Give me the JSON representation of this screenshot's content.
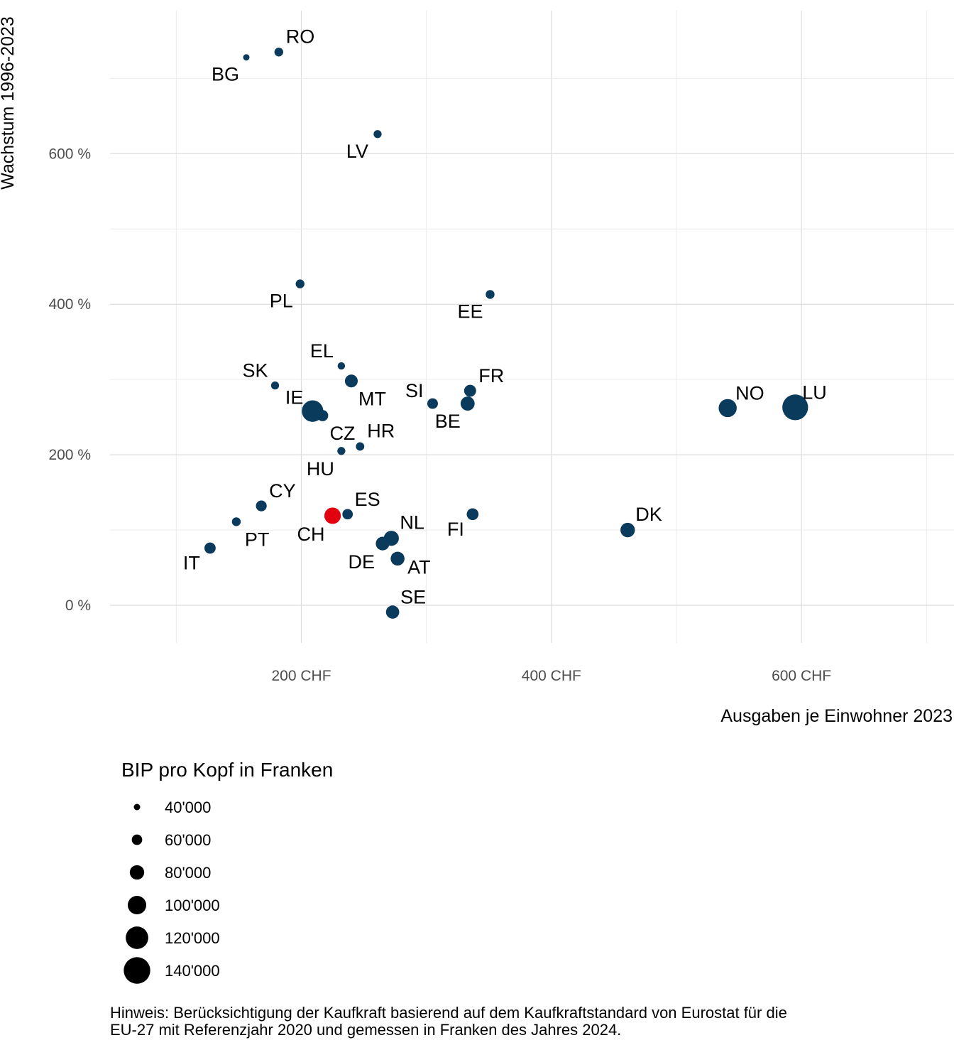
{
  "chart_data": {
    "type": "scatter",
    "xlabel": "Ausgaben je Einwohner 2023",
    "ylabel": "Wachstum 1996-2023",
    "x_unit_suffix": " CHF",
    "y_unit_suffix": " %",
    "xlim": [
      47,
      722
    ],
    "ylim": [
      -50,
      790
    ],
    "x_ticks": [
      200,
      400,
      600
    ],
    "y_ticks": [
      0,
      200,
      400,
      600
    ],
    "grid": true,
    "size_legend": {
      "title": "BIP pro Kopf in Franken",
      "placement": "bottom-left",
      "entries": [
        {
          "label": "40'000",
          "value": 40000
        },
        {
          "label": "60'000",
          "value": 60000
        },
        {
          "label": "80'000",
          "value": 80000
        },
        {
          "label": "100'000",
          "value": 100000
        },
        {
          "label": "120'000",
          "value": 120000
        },
        {
          "label": "140'000",
          "value": 140000
        }
      ]
    },
    "colors": {
      "default": "#0b3b5c",
      "highlight": "#e3000f"
    },
    "points": [
      {
        "label": "RO",
        "x": 182,
        "y": 735,
        "gdp": 52000
      },
      {
        "label": "BG",
        "x": 156,
        "y": 728,
        "gdp": 40000
      },
      {
        "label": "LV",
        "x": 261,
        "y": 626,
        "gdp": 48000
      },
      {
        "label": "PL",
        "x": 199,
        "y": 427,
        "gdp": 52000
      },
      {
        "label": "EE",
        "x": 351,
        "y": 413,
        "gdp": 52000
      },
      {
        "label": "EL",
        "x": 232,
        "y": 318,
        "gdp": 45000
      },
      {
        "label": "SK",
        "x": 179,
        "y": 292,
        "gdp": 48000
      },
      {
        "label": "MT",
        "x": 240,
        "y": 298,
        "gdp": 72000
      },
      {
        "label": "FR",
        "x": 335,
        "y": 285,
        "gdp": 68000
      },
      {
        "label": "SI",
        "x": 305,
        "y": 268,
        "gdp": 61000
      },
      {
        "label": "BE",
        "x": 333,
        "y": 268,
        "gdp": 78000
      },
      {
        "label": "IE",
        "x": 209,
        "y": 258,
        "gdp": 115000
      },
      {
        "label": "CZ",
        "x": 217,
        "y": 252,
        "gdp": 64000
      },
      {
        "label": "HR",
        "x": 247,
        "y": 211,
        "gdp": 50000
      },
      {
        "label": "HU",
        "x": 232,
        "y": 205,
        "gdp": 48000
      },
      {
        "label": "NO",
        "x": 541,
        "y": 262,
        "gdp": 98000
      },
      {
        "label": "LU",
        "x": 595,
        "y": 263,
        "gdp": 136000
      },
      {
        "label": "CY",
        "x": 168,
        "y": 132,
        "gdp": 62000
      },
      {
        "label": "ES",
        "x": 237,
        "y": 121,
        "gdp": 60000
      },
      {
        "label": "CH",
        "x": 225,
        "y": 119,
        "gdp": 90000,
        "highlight": true
      },
      {
        "label": "PT",
        "x": 148,
        "y": 111,
        "gdp": 52000
      },
      {
        "label": "FI",
        "x": 337,
        "y": 121,
        "gdp": 67000
      },
      {
        "label": "DK",
        "x": 461,
        "y": 100,
        "gdp": 80000
      },
      {
        "label": "NL",
        "x": 272,
        "y": 89,
        "gdp": 83000
      },
      {
        "label": "DE",
        "x": 265,
        "y": 82,
        "gdp": 76000
      },
      {
        "label": "IT",
        "x": 127,
        "y": 76,
        "gdp": 64000
      },
      {
        "label": "AT",
        "x": 277,
        "y": 62,
        "gdp": 77000
      },
      {
        "label": "SE",
        "x": 273,
        "y": -9,
        "gdp": 74000
      }
    ]
  },
  "note": {
    "line1": "Hinweis: Berücksichtigung der Kaufkraft basierend auf dem Kaufkraftstandard von Eurostat für die",
    "line2": "EU-27 mit Referenzjahr 2020 und gemessen in Franken des Jahres 2024."
  }
}
